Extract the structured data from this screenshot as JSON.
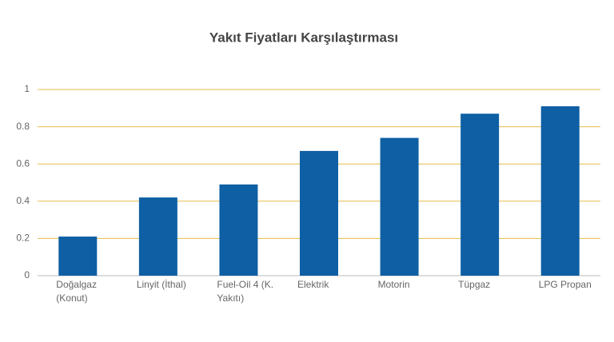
{
  "chart_data": {
    "type": "bar",
    "title": "Yakıt Fiyatları Karşılaştırması",
    "categories": [
      "Doğalgaz (Konut)",
      "Linyit (İthal)",
      "Fuel-Oil 4 (K. Yakıtı)",
      "Elektrik",
      "Motorin",
      "Tüpgaz",
      "LPG Propan"
    ],
    "values": [
      0.21,
      0.42,
      0.49,
      0.67,
      0.74,
      0.87,
      0.91
    ],
    "color": "#0e5fa3",
    "ylim": [
      0,
      1
    ],
    "yticks": [
      0,
      0.2,
      0.4,
      0.6,
      0.8,
      1
    ],
    "grid": true
  }
}
